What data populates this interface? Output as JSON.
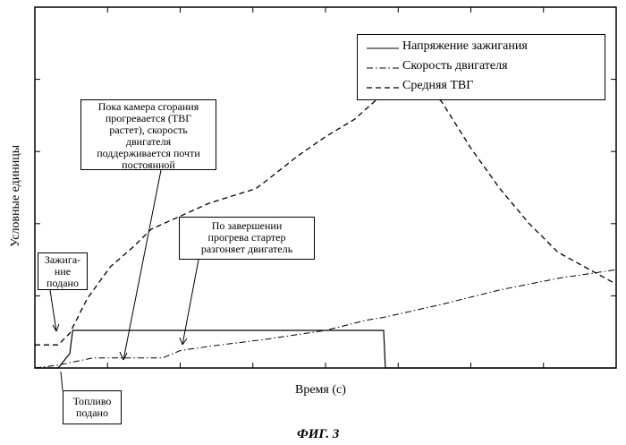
{
  "chart_data": {
    "type": "line",
    "title": "",
    "xlabel": "Время (с)",
    "ylabel": "Условные единицы",
    "xlim": [
      0,
      100
    ],
    "ylim": [
      0,
      100
    ],
    "grid": false,
    "legend_position": "top-right",
    "series": [
      {
        "name": "Напряжение зажигания",
        "style": "solid",
        "x": [
          0,
          4,
          6,
          6.5,
          60,
          60.3,
          61,
          100
        ],
        "y": [
          0,
          0,
          5,
          13,
          13,
          0,
          0,
          0
        ]
      },
      {
        "name": "Скорость двигателя",
        "style": "dash-dot",
        "x": [
          0,
          4,
          10,
          14,
          20,
          22,
          25,
          30,
          40,
          50,
          57,
          60,
          70,
          80,
          90,
          100
        ],
        "y": [
          0,
          1,
          3.5,
          3.5,
          3.5,
          3.5,
          6,
          7.5,
          10,
          13,
          16.5,
          17.5,
          22,
          27,
          31,
          34
        ]
      },
      {
        "name": "Средняя ТВГ",
        "style": "dashed",
        "x": [
          0,
          4,
          6,
          9,
          13,
          17,
          20,
          30,
          38,
          40,
          45,
          50,
          55,
          60,
          65,
          70,
          75,
          80,
          85,
          90,
          100
        ],
        "y": [
          8,
          8,
          12,
          24,
          35,
          42,
          48,
          57,
          62,
          65,
          73,
          80,
          86,
          95,
          102,
          92,
          76,
          62,
          50,
          40,
          29
        ]
      }
    ],
    "legend": [
      "Напряжение зажигания",
      "Скорость двигателя",
      "Средняя ТВГ"
    ],
    "annotations": [
      "Пока камера сгорания прогревается (ТВГ растет), скорость двигателя поддерживается почти постоянной",
      "По завершении прогрева стартер разгоняет двигатель",
      "Зажига- ние подано",
      "Топливо подано"
    ]
  },
  "callouts": {
    "warmup": [
      "Пока камера сгорания",
      "прогревается (ТВГ",
      "растет), скорость",
      "двигателя",
      "поддерживается почти",
      "постоянной"
    ],
    "starter": [
      "По завершении",
      "прогрева стартер",
      "разгоняет двигатель"
    ],
    "ignition": [
      "Зажига-",
      "ние",
      "подано"
    ],
    "fuel": [
      "Топливо",
      "подано"
    ]
  },
  "caption": "ФИГ. 3"
}
